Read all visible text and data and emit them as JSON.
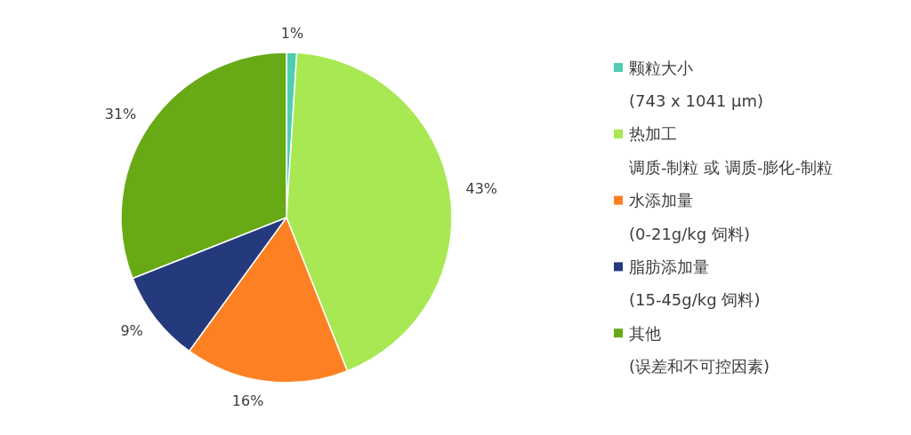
{
  "chart_data": {
    "type": "pie",
    "categories": [
      "颗粒大小",
      "热加工",
      "水添加量",
      "脂肪添加量",
      "其他"
    ],
    "values": [
      1,
      43,
      16,
      9,
      31
    ],
    "value_labels": [
      "1%",
      "43%",
      "16%",
      "9%",
      "31%"
    ],
    "colors": [
      "#4ecdb0",
      "#a8e853",
      "#fd8123",
      "#253a7c",
      "#68a916"
    ],
    "annotations": [
      "(743 x 1041 μm)",
      "调质-制粒 或 调质-膨化-制粒",
      "(0-21g/kg 饲料)",
      "(15-45g/kg 饲料)",
      "(误差和不可控因素)"
    ],
    "legend": "right"
  }
}
